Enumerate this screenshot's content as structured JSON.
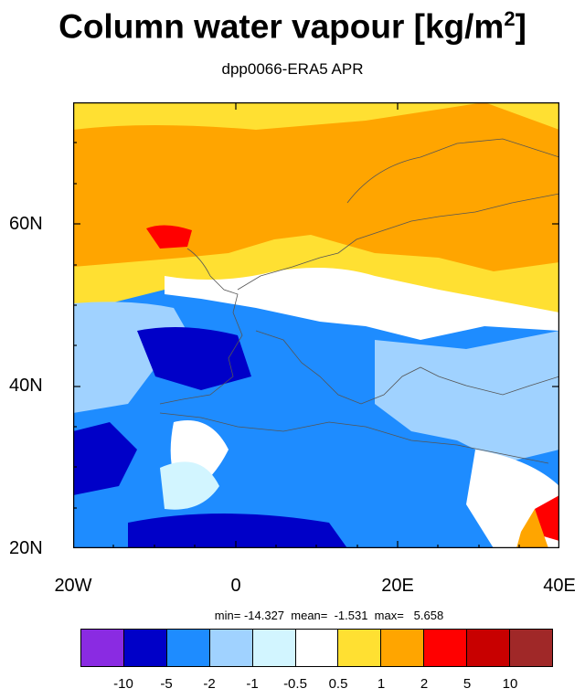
{
  "title": {
    "main": "Column water vapour [kg/m",
    "sup": "2",
    "close": "]"
  },
  "subtitle": "dpp0066-ERA5 APR",
  "stats": "min= -14.327  mean=  -1.531  max=   5.658",
  "colors": {
    "c1": "#8a2be2",
    "c2": "#0000c8",
    "c3": "#1e8cff",
    "c4": "#a0d2ff",
    "c5": "#d2f5ff",
    "c6": "#ffffff",
    "c7": "#ffe032",
    "c8": "#ffa500",
    "c9": "#ff0000",
    "c10": "#c80000",
    "c11": "#a02828"
  },
  "colorbar": {
    "colors": [
      "#8a2be2",
      "#0000c8",
      "#1e8cff",
      "#a0d2ff",
      "#d2f5ff",
      "#ffffff",
      "#ffe032",
      "#ffa500",
      "#ff0000",
      "#c80000",
      "#a02828"
    ],
    "labels": [
      "-10",
      "-5",
      "-2",
      "-1",
      "-0.5",
      "0.5",
      "1",
      "2",
      "5",
      "10"
    ]
  },
  "axes": {
    "y_labels": [
      "60N",
      "40N",
      "20N"
    ],
    "x_labels": [
      "20W",
      "0",
      "20E",
      "40E"
    ]
  }
}
